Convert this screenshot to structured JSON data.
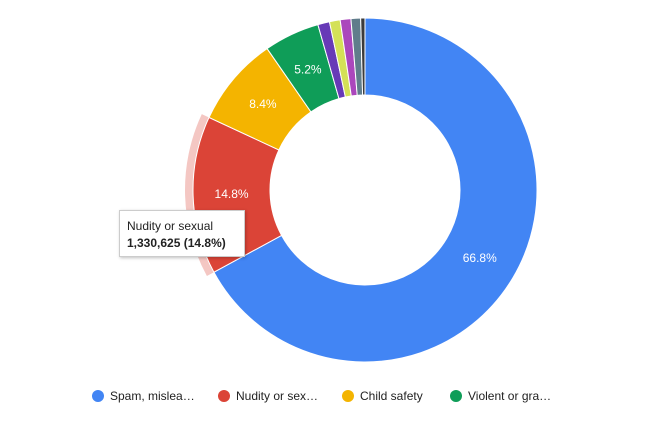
{
  "chart_data": {
    "type": "pie",
    "donut": true,
    "slices": [
      {
        "label": "Spam, mislea…",
        "percent": 66.8,
        "value_label": "66.8%",
        "color": "#4285f4"
      },
      {
        "label": "Nudity or sex…",
        "percent": 14.8,
        "value_label": "14.8%",
        "color": "#db4437"
      },
      {
        "label": "Child safety",
        "percent": 8.4,
        "value_label": "8.4%",
        "color": "#f4b400"
      },
      {
        "label": "Violent or gra…",
        "percent": 5.2,
        "value_label": "5.2%",
        "color": "#0f9d58"
      },
      {
        "label": "",
        "percent": 1.1,
        "value_label": "",
        "color": "#673ab7"
      },
      {
        "label": "",
        "percent": 1.0,
        "value_label": "",
        "color": "#d4e157"
      },
      {
        "label": "",
        "percent": 1.0,
        "value_label": "",
        "color": "#ab47bc"
      },
      {
        "label": "",
        "percent": 0.9,
        "value_label": "",
        "color": "#607d8b"
      },
      {
        "label": "",
        "percent": 0.4,
        "value_label": "",
        "color": "#3b3b3b"
      }
    ],
    "highlighted_slice": 1,
    "legend_position": "bottom",
    "tooltip": {
      "title": "Nudity or sexual",
      "value": "1,330,625 (14.8%)"
    }
  }
}
